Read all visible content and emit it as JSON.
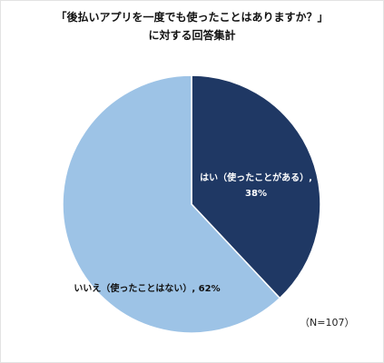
{
  "chart_data": {
    "type": "pie",
    "title_lines": [
      "「後払いアプリを一度でも使ったことはありますか？」",
      "に対する回答集計"
    ],
    "slices": [
      {
        "label": "はい（使ったことがある）",
        "value": 38,
        "color": "#1f3864",
        "text_color": "#ffffff",
        "label_lines": [
          "はい（使ったことがある）,",
          "38%"
        ]
      },
      {
        "label": "いいえ（使ったことはない）",
        "value": 62,
        "color": "#9dc3e6",
        "text_color": "#111111",
        "label_lines": [
          "いいえ（使ったことはない）, 62%"
        ]
      }
    ],
    "note": "（N=107）",
    "legend": "none"
  }
}
